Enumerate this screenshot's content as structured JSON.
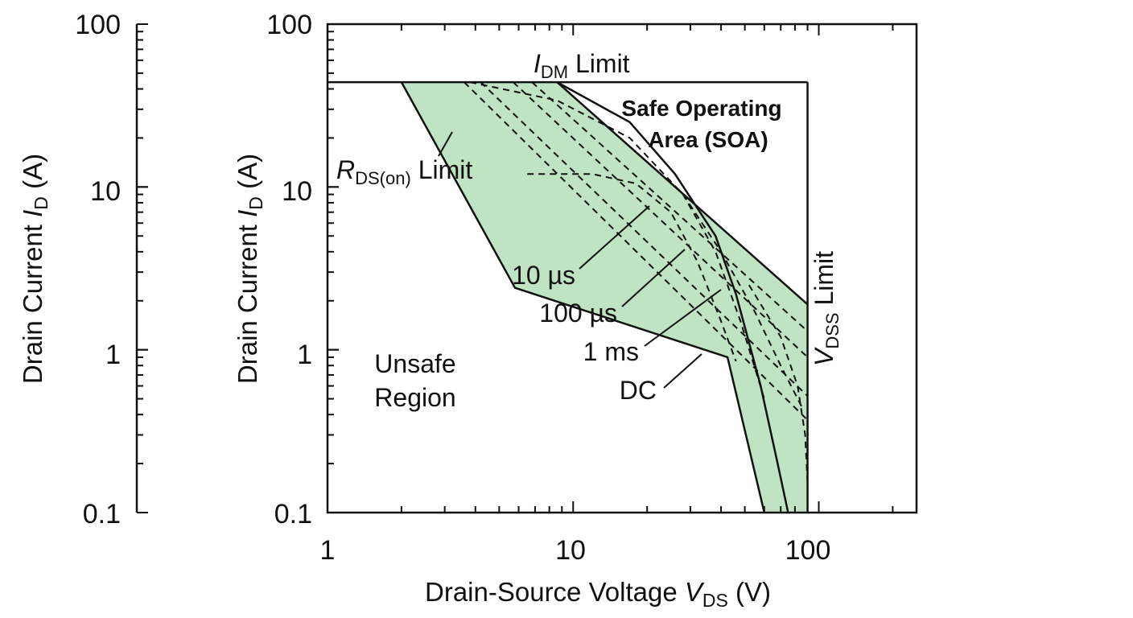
{
  "chart_data": {
    "type": "area",
    "x_scale": "log",
    "y_scale": "log",
    "xlim": [
      1,
      250
    ],
    "ylim": [
      0.1,
      100
    ],
    "x_ticks": [
      "1",
      "10",
      "100"
    ],
    "y_ticks": [
      "0.1",
      "1",
      "10",
      "100"
    ],
    "xlabel": {
      "main": "Drain-Source Voltage  ",
      "var": "V",
      "sub": "DS",
      "unit": " (V)"
    },
    "ylabel": {
      "main": "Drain Current ",
      "var": "I",
      "sub": "D",
      "unit": " (A)"
    },
    "left_axis": {
      "ticks": [
        "0.1",
        "1",
        "10",
        "100"
      ],
      "label": {
        "main": "Drain Current ",
        "var": "I",
        "sub": "D",
        "unit": " (A)"
      }
    },
    "fill_color": "#bfe3c3",
    "limits": {
      "idm": {
        "value_A": 44,
        "label_var": "I",
        "label_sub": "DM",
        "label_rest": " Limit"
      },
      "vdss": {
        "value_V": 90,
        "label_var": "V",
        "label_sub": "DSS",
        "label_rest": " Limit"
      },
      "rds_on": {
        "label_var": "R",
        "label_sub": "DS(on)",
        "label_rest": " Limit"
      }
    },
    "soa_boundary": {
      "x": [
        2.0,
        8.6,
        90,
        90,
        60,
        42.5,
        5.8,
        2.0
      ],
      "y": [
        44,
        44,
        1.9,
        0.1,
        0.1,
        0.9,
        2.4,
        44
      ]
    },
    "series": [
      {
        "label": "10 µs",
        "style": "solid",
        "points": {
          "x": [
            8.6,
            90
          ],
          "y": [
            44,
            1.9
          ]
        }
      },
      {
        "label": "100 µs",
        "style": "dashed",
        "points": {
          "x": [
            6.8,
            90
          ],
          "y": [
            44,
            1.3
          ]
        }
      },
      {
        "label": "1 ms",
        "style": "dashed",
        "points": {
          "x": [
            5.7,
            90
          ],
          "y": [
            44,
            0.9
          ]
        }
      },
      {
        "label": "DC",
        "style": "dashed",
        "points": {
          "x": [
            4.2,
            90
          ],
          "y": [
            44,
            0.52
          ]
        }
      },
      {
        "style": "dashed",
        "points": {
          "x": [
            3.6,
            90
          ],
          "y": [
            44,
            0.37
          ]
        }
      },
      {
        "style": "solid",
        "points": {
          "x": [
            2.0,
            5.8,
            42.5,
            60
          ],
          "y": [
            44,
            2.4,
            0.9,
            0.1
          ]
        }
      },
      {
        "style": "solid",
        "points": {
          "x": [
            8.6,
            17,
            26,
            38,
            46,
            58,
            68,
            75
          ],
          "y": [
            44,
            25,
            12,
            5.0,
            2.2,
            0.6,
            0.2,
            0.1
          ]
        }
      },
      {
        "style": "dashed",
        "points": {
          "x": [
            3.8,
            8.6,
            17,
            28,
            38,
            48,
            60
          ],
          "y": [
            44,
            34,
            20,
            9,
            4,
            1.5,
            0.5
          ]
        }
      },
      {
        "style": "dashed",
        "points": {
          "x": [
            6.5,
            12,
            18,
            25,
            32,
            40,
            46
          ],
          "y": [
            12,
            12,
            10.5,
            7,
            3.5,
            1.5,
            0.85
          ]
        }
      },
      {
        "style": "dashed",
        "points": {
          "x": [
            28,
            40,
            55,
            70,
            85
          ],
          "y": [
            9,
            4,
            1.7,
            0.8,
            0.45
          ]
        }
      },
      {
        "style": "dashed",
        "points": {
          "x": [
            52,
            70,
            82,
            88,
            90
          ],
          "y": [
            2.5,
            1.2,
            0.6,
            0.3,
            0.15
          ]
        }
      }
    ],
    "annotations": {
      "soa_line1": "Safe Operating",
      "soa_line2": "Area (SOA)",
      "unsafe_line1": "Unsafe",
      "unsafe_line2": "Region",
      "l10us": "10 µs",
      "l100us": "100 µs",
      "l1ms": "1 ms",
      "ldc": "DC"
    }
  }
}
